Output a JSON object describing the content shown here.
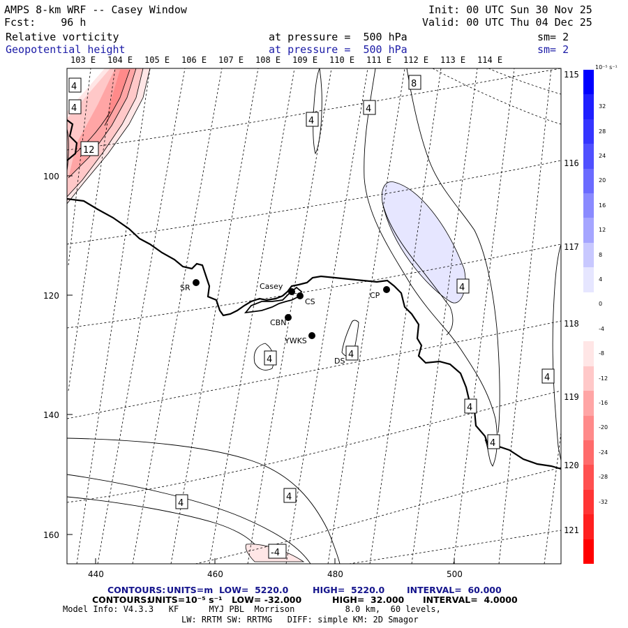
{
  "header": {
    "title": "AMPS 8-km WRF -- Casey Window",
    "fcst": "Fcst:    96 h",
    "init": "Init: 00 UTC Sun 30 Nov 25",
    "valid": "Valid: 00 UTC Thu 04 Dec 25",
    "field1_name": "Relative vorticity",
    "field1_level": "at pressure =  500 hPa",
    "field1_sm": "sm= 2",
    "field2_name": "Geopotential height",
    "field2_level": "at pressure =  500 hPa",
    "field2_sm": "sm= 2"
  },
  "map": {
    "lon_top_labels": [
      "103 E",
      "104 E",
      "105 E",
      "106 E",
      "107 E",
      "108 E",
      "109 E",
      "110 E",
      "111 E",
      "112 E",
      "113 E",
      "114 E"
    ],
    "lon_right_labels": [
      "115 E",
      "116 E",
      "117 E",
      "118 E",
      "119 E",
      "120 E",
      "121 E"
    ],
    "y_ticks": [
      "100",
      "120",
      "140",
      "160"
    ],
    "x_ticks": [
      "440",
      "460",
      "480",
      "500"
    ],
    "stations": [
      {
        "id": "SR"
      },
      {
        "id": "Casey"
      },
      {
        "id": "CS"
      },
      {
        "id": "CP"
      },
      {
        "id": "CBN"
      },
      {
        "id": "YWKS"
      },
      {
        "id": "DS"
      }
    ],
    "contour_labels": [
      "4",
      "4",
      "4",
      "4",
      "12",
      "8",
      "4",
      "4",
      "4",
      "4",
      "4",
      "4",
      "4",
      "-4"
    ]
  },
  "colorbar": {
    "unit": "10⁻⁵ s⁻¹",
    "levels": [
      "32",
      "28",
      "24",
      "20",
      "16",
      "12",
      "8",
      "4",
      "0",
      "-4",
      "-8",
      "-12",
      "-16",
      "-20",
      "-24",
      "-28",
      "-32"
    ],
    "colors": [
      "#0000ff",
      "#1f1fff",
      "#3535ff",
      "#5050ff",
      "#6b6bff",
      "#8a8aff",
      "#a5a5ff",
      "#c8c8ff",
      "#e6e6ff",
      "#ffffff",
      "#ffffff",
      "#ffe6e6",
      "#ffc8c8",
      "#ffa5a5",
      "#ff8a8a",
      "#ff6b6b",
      "#ff5050",
      "#ff3535",
      "#ff1f1f",
      "#ff0000"
    ]
  },
  "footer": {
    "contours1_label": "CONTOURS:",
    "contours1_units": "UNITS=m",
    "contours1_low": "LOW=  5220.0",
    "contours1_high": "HIGH=  5220.0",
    "contours1_interval": "INTERVAL=  60.000",
    "contours2_label": "CONTOURS:",
    "contours2_units": "UNITS=10⁻⁵ s⁻¹",
    "contours2_low": "LOW= -32.000",
    "contours2_high": "HIGH=  32.000",
    "contours2_interval": "INTERVAL=  4.0000",
    "model_info": "Model Info: V4.3.3   KF      MYJ PBL  Morrison          8.0 km,  60 levels,",
    "model_info2": "LW: RRTM SW: RRTMG   DIFF: simple KM: 2D Smagor"
  }
}
